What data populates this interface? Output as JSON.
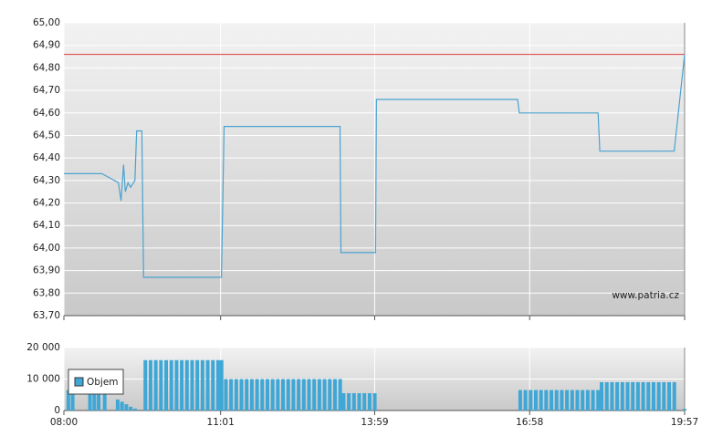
{
  "chart_data": [
    {
      "type": "line",
      "xlim": [
        "08:00",
        "19:57"
      ],
      "ylim": [
        63.7,
        65
      ],
      "yticks": [
        {
          "value": 63.7,
          "label": "63,70"
        },
        {
          "value": 63.8,
          "label": "63,80"
        },
        {
          "value": 63.9,
          "label": "63,90"
        },
        {
          "value": 64,
          "label": "64,00"
        },
        {
          "value": 64.1,
          "label": "64,10"
        },
        {
          "value": 64.2,
          "label": "64,20"
        },
        {
          "value": 64.3,
          "label": "64,30"
        },
        {
          "value": 64.4,
          "label": "64,40"
        },
        {
          "value": 64.5,
          "label": "64,50"
        },
        {
          "value": 64.6,
          "label": "64,60"
        },
        {
          "value": 64.7,
          "label": "64,70"
        },
        {
          "value": 64.8,
          "label": "64,80"
        },
        {
          "value": 64.9,
          "label": "64,90"
        },
        {
          "value": 65,
          "label": "65,00"
        }
      ],
      "grid": true,
      "reference_line": {
        "value": 64.86,
        "color": "#e03a3a"
      },
      "watermark": "www.patria.cz",
      "series": [
        {
          "color": "#4aa3d0",
          "x": [
            "08:00",
            "08:44",
            "09:03",
            "09:06",
            "09:09",
            "09:11",
            "09:14",
            "09:17",
            "09:22",
            "09:24",
            "09:30",
            "09:32",
            "11:02",
            "11:05",
            "13:19",
            "13:20",
            "14:00",
            "14:01",
            "16:44",
            "16:46",
            "18:17",
            "18:19",
            "19:45",
            "19:57"
          ],
          "values": [
            64.33,
            64.33,
            64.29,
            64.21,
            64.37,
            64.25,
            64.29,
            64.27,
            64.3,
            64.52,
            64.52,
            63.87,
            63.87,
            64.54,
            64.54,
            63.98,
            63.98,
            64.66,
            64.66,
            64.6,
            64.6,
            64.43,
            64.43,
            64.86
          ]
        }
      ]
    },
    {
      "type": "bar",
      "xlim": [
        "08:00",
        "19:57"
      ],
      "xticks": [
        "08:00",
        "11:01",
        "13:59",
        "16:58",
        "19:57"
      ],
      "ylim": [
        0,
        20000
      ],
      "yticks": [
        0,
        {
          "value": 10000,
          "label": "10 000"
        },
        {
          "value": 20000,
          "label": "20 000"
        }
      ],
      "grid": true,
      "legend": "top-left",
      "series": [
        {
          "name": "Objem",
          "color": "#3fa7d6",
          "x": [
            "08:03",
            "08:08",
            "08:28",
            "08:33",
            "08:38",
            "08:45",
            "09:00",
            "09:05",
            "09:10",
            "09:15",
            "09:20",
            "09:32",
            "09:38",
            "09:44",
            "09:50",
            "09:56",
            "10:02",
            "10:08",
            "10:14",
            "10:20",
            "10:26",
            "10:32",
            "10:38",
            "10:44",
            "10:50",
            "10:56",
            "11:00",
            "11:05",
            "11:11",
            "11:17",
            "11:23",
            "11:29",
            "11:35",
            "11:41",
            "11:47",
            "11:53",
            "11:59",
            "12:05",
            "12:11",
            "12:17",
            "12:23",
            "12:29",
            "12:35",
            "12:41",
            "12:47",
            "12:53",
            "12:59",
            "13:05",
            "13:11",
            "13:17",
            "13:21",
            "13:27",
            "13:33",
            "13:39",
            "13:45",
            "13:51",
            "13:57",
            "16:45",
            "16:51",
            "16:57",
            "17:03",
            "17:09",
            "17:15",
            "17:21",
            "17:27",
            "17:33",
            "17:39",
            "17:45",
            "17:51",
            "17:57",
            "18:03",
            "18:09",
            "18:15",
            "18:19",
            "18:25",
            "18:31",
            "18:37",
            "18:43",
            "18:49",
            "18:55",
            "19:01",
            "19:07",
            "19:13",
            "19:19",
            "19:25",
            "19:31",
            "19:37",
            "19:43",
            "19:55"
          ],
          "values": [
            6500,
            6500,
            6500,
            6500,
            6500,
            6500,
            3500,
            2800,
            2000,
            1200,
            600,
            16000,
            16000,
            16000,
            16000,
            16000,
            16000,
            16000,
            16000,
            16000,
            16000,
            16000,
            16000,
            16000,
            16000,
            16000,
            16000,
            10000,
            10000,
            10000,
            10000,
            10000,
            10000,
            10000,
            10000,
            10000,
            10000,
            10000,
            10000,
            10000,
            10000,
            10000,
            10000,
            10000,
            10000,
            10000,
            10000,
            10000,
            10000,
            10000,
            5500,
            5500,
            5500,
            5500,
            5500,
            5500,
            5500,
            6500,
            6500,
            6500,
            6500,
            6500,
            6500,
            6500,
            6500,
            6500,
            6500,
            6500,
            6500,
            6500,
            6500,
            6500,
            6500,
            9000,
            9000,
            9000,
            9000,
            9000,
            9000,
            9000,
            9000,
            9000,
            9000,
            9000,
            9000,
            9000,
            9000,
            9000,
            500
          ]
        }
      ]
    }
  ]
}
